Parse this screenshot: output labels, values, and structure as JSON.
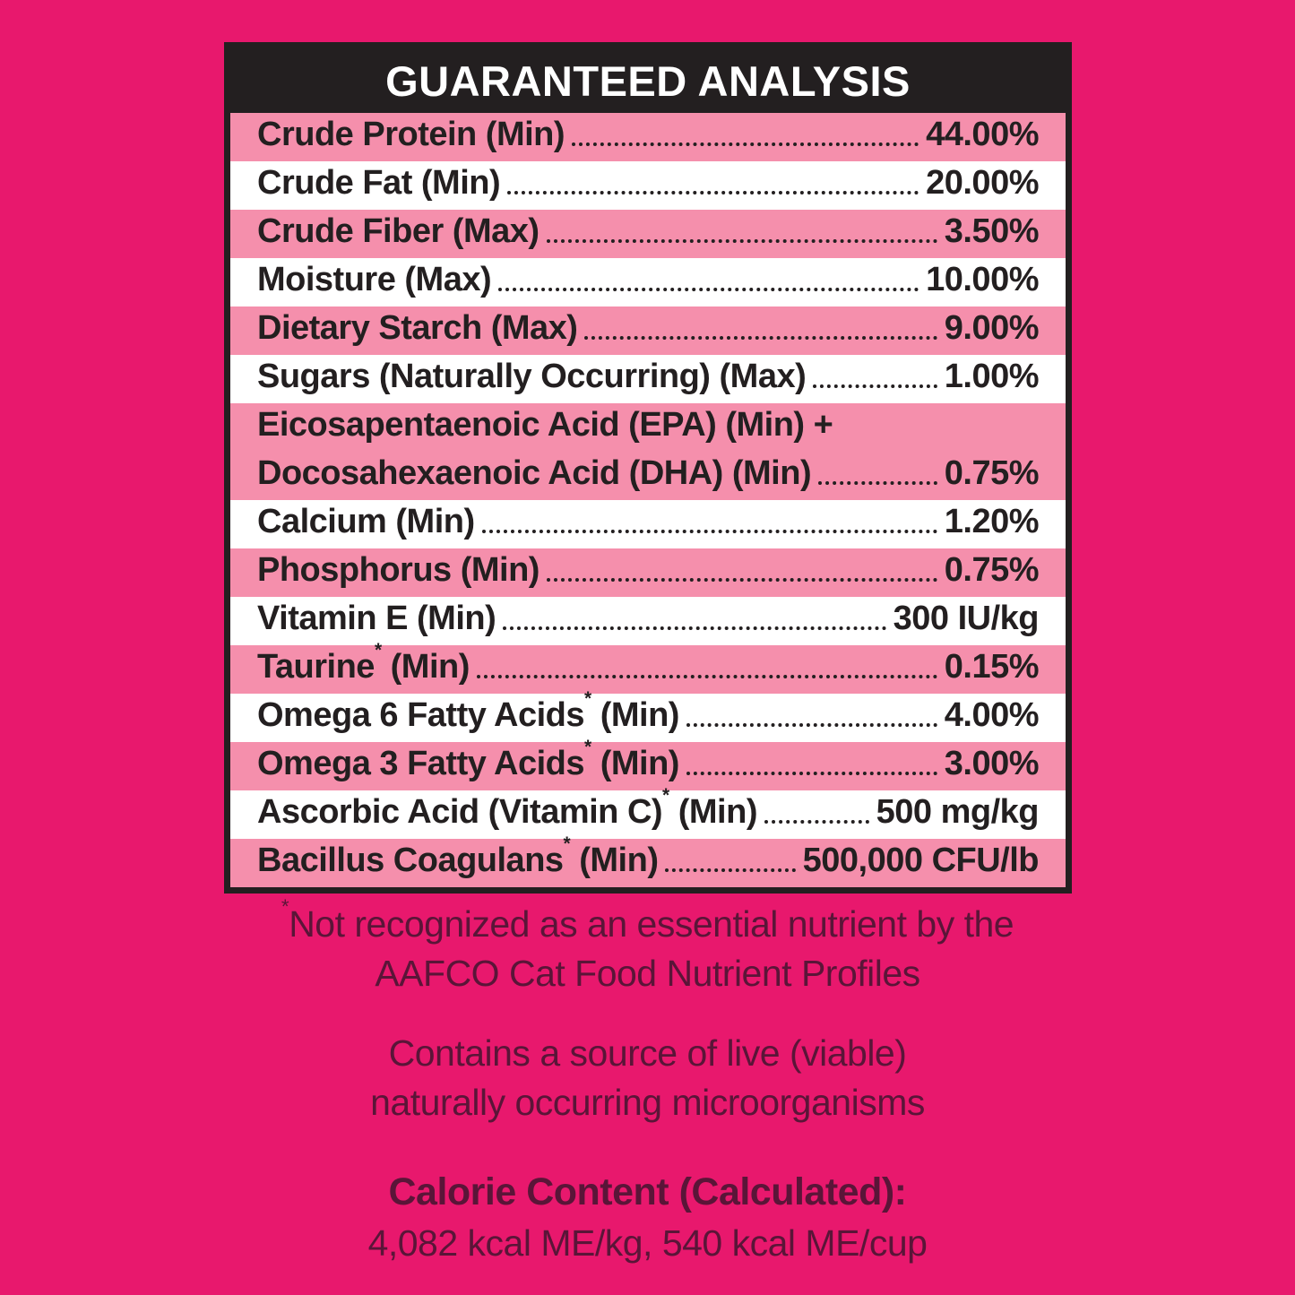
{
  "colors": {
    "background": "#E8186D",
    "row_pink": "#F58FAC",
    "header_bg": "#231F20",
    "table_text": "#231F20",
    "note_text": "#5A1538"
  },
  "table": {
    "title": "GUARANTEED ANALYSIS",
    "rows": [
      {
        "shade": "pink",
        "lines": [
          {
            "label": "Crude Protein (Min)",
            "value": "44.00%"
          }
        ]
      },
      {
        "shade": "white",
        "lines": [
          {
            "label": "Crude Fat (Min)",
            "value": "20.00%"
          }
        ]
      },
      {
        "shade": "pink",
        "lines": [
          {
            "label": "Crude Fiber (Max)",
            "value": "3.50%"
          }
        ]
      },
      {
        "shade": "white",
        "lines": [
          {
            "label": "Moisture (Max)",
            "value": "10.00%"
          }
        ]
      },
      {
        "shade": "pink",
        "lines": [
          {
            "label": "Dietary Starch (Max)",
            "value": "9.00%"
          }
        ]
      },
      {
        "shade": "white",
        "lines": [
          {
            "label": "Sugars (Naturally Occurring) (Max)",
            "value": "1.00%"
          }
        ]
      },
      {
        "shade": "pink",
        "lines": [
          {
            "label": "Eicosapentaenoic Acid (EPA) (Min) +"
          },
          {
            "label": "Docosahexaenoic Acid (DHA) (Min)",
            "value": "0.75%"
          }
        ]
      },
      {
        "shade": "white",
        "lines": [
          {
            "label": "Calcium (Min)",
            "value": "1.20%"
          }
        ]
      },
      {
        "shade": "pink",
        "lines": [
          {
            "label": "Phosphorus (Min)",
            "value": "0.75%"
          }
        ]
      },
      {
        "shade": "white",
        "lines": [
          {
            "label": "Vitamin E (Min)",
            "value": "300 IU/kg"
          }
        ]
      },
      {
        "shade": "pink",
        "lines": [
          {
            "label": "Taurine* (Min)",
            "value": "0.15%"
          }
        ]
      },
      {
        "shade": "white",
        "lines": [
          {
            "label": "Omega 6 Fatty Acids* (Min)",
            "value": "4.00%"
          }
        ]
      },
      {
        "shade": "pink",
        "lines": [
          {
            "label": "Omega 3 Fatty Acids* (Min)",
            "value": "3.00%"
          }
        ]
      },
      {
        "shade": "white",
        "lines": [
          {
            "label": "Ascorbic Acid (Vitamin C)* (Min)",
            "value": "500 mg/kg"
          }
        ]
      },
      {
        "shade": "pink",
        "lines": [
          {
            "label": "Bacillus Coagulans* (Min)",
            "value": "500,000 CFU/lb"
          }
        ]
      }
    ]
  },
  "footnotes": {
    "asterisk_note_line1": "*Not recognized as an essential nutrient by the",
    "asterisk_note_line2": "AAFCO Cat Food Nutrient Profiles",
    "microorganisms_line1": "Contains a source of live (viable)",
    "microorganisms_line2": "naturally occurring microorganisms"
  },
  "calorie_content": {
    "heading": "Calorie Content (Calculated):",
    "values": "4,082 kcal ME/kg, 540 kcal ME/cup"
  }
}
